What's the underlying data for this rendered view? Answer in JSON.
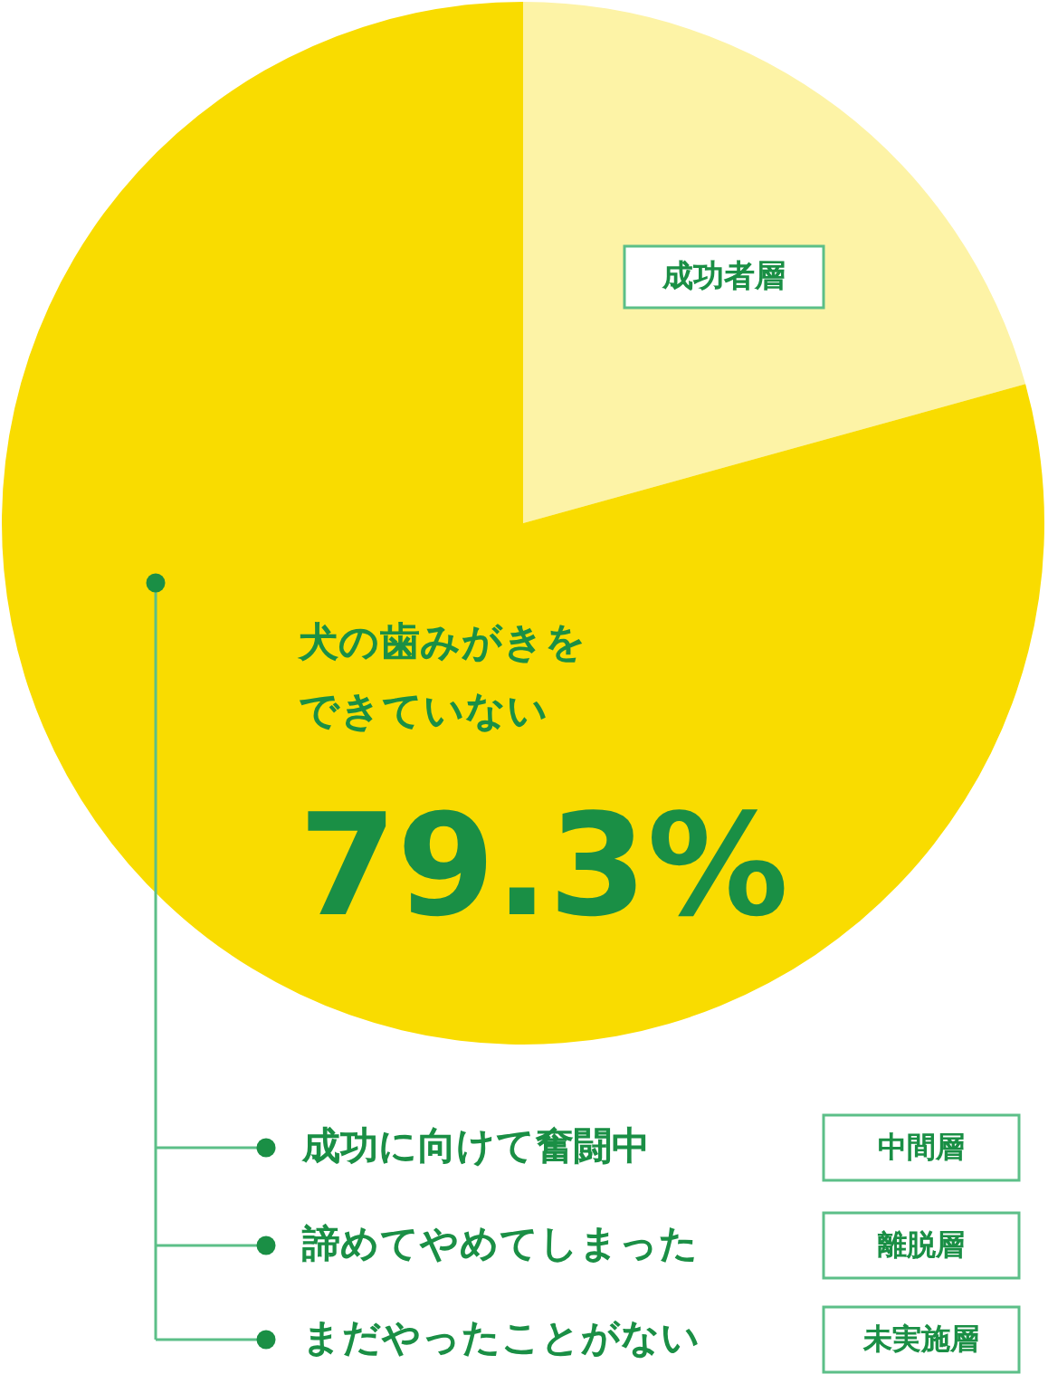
{
  "chart_data": {
    "type": "pie",
    "categories": [
      "成功者層",
      "犬の歯みがきをできていない"
    ],
    "values": [
      20.7,
      79.3
    ],
    "colors": [
      "#fdf3a6",
      "#f9dc00"
    ],
    "value_labels": [
      null,
      "79.3%"
    ],
    "annotations": [
      "成功に向けて奮闘中",
      "中間層",
      "諦めてやめてしまった",
      "離脱層",
      "まだやったことがない",
      "未実施層"
    ]
  }
}
